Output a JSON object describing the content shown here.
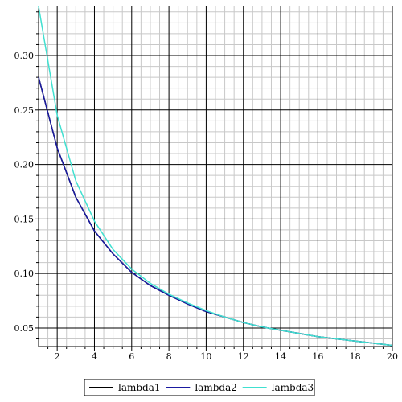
{
  "chart_data": {
    "type": "line",
    "title": "",
    "xlabel": "",
    "ylabel": "",
    "xlim": [
      1,
      20
    ],
    "ylim": [
      0.033,
      0.345
    ],
    "grid": true,
    "legend_position": "bottom",
    "x_ticks": [
      2,
      4,
      6,
      8,
      10,
      12,
      14,
      16,
      18,
      20
    ],
    "x_tick_labels": [
      "2",
      "4",
      "6",
      "8",
      "10",
      "12",
      "14",
      "16",
      "18",
      "20"
    ],
    "y_ticks": [
      0.05,
      0.1,
      0.15,
      0.2,
      0.25,
      0.3
    ],
    "y_tick_labels": [
      "0.05",
      "0.10",
      "0.15",
      "0.20",
      "0.25",
      "0.30"
    ],
    "series": [
      {
        "name": "lambda1",
        "color": "#000000",
        "x": [
          1,
          2,
          3,
          4,
          5,
          6,
          7,
          8,
          9,
          10,
          11,
          12,
          13,
          14,
          15,
          16,
          17,
          18,
          19,
          20
        ],
        "y": [
          0.28,
          0.215,
          0.17,
          0.139,
          0.118,
          0.101,
          0.089,
          0.08,
          0.072,
          0.065,
          0.06,
          0.055,
          0.051,
          0.048,
          0.045,
          0.042,
          0.04,
          0.038,
          0.036,
          0.034
        ]
      },
      {
        "name": "lambda2",
        "color": "#1a1aa0",
        "x": [
          1,
          2,
          3,
          4,
          5,
          6,
          7,
          8,
          9,
          10,
          11,
          12,
          13,
          14,
          15,
          16,
          17,
          18,
          19,
          20
        ],
        "y": [
          0.28,
          0.215,
          0.17,
          0.139,
          0.118,
          0.101,
          0.089,
          0.08,
          0.072,
          0.065,
          0.06,
          0.055,
          0.051,
          0.048,
          0.045,
          0.042,
          0.04,
          0.038,
          0.036,
          0.034
        ]
      },
      {
        "name": "lambda3",
        "color": "#40e0d0",
        "x": [
          1,
          2,
          3,
          4,
          5,
          6,
          7,
          8,
          9,
          10,
          11,
          12,
          13,
          14,
          15,
          16,
          17,
          18,
          19,
          20
        ],
        "y": [
          0.345,
          0.245,
          0.185,
          0.148,
          0.122,
          0.104,
          0.091,
          0.081,
          0.073,
          0.066,
          0.06,
          0.055,
          0.051,
          0.048,
          0.045,
          0.042,
          0.04,
          0.038,
          0.036,
          0.034
        ]
      }
    ]
  }
}
